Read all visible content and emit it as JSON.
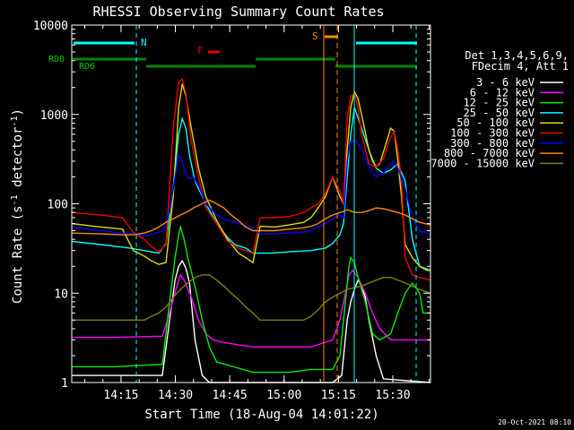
{
  "chart_data": {
    "type": "line",
    "title": "RHESSI Observing Summary Count Rates",
    "xlabel": "Start Time (18-Aug-04 14:01:22)",
    "ylabel": "Count Rate (s⁻¹ detector⁻¹)",
    "ylabel_parts": {
      "main": "Count Rate (s",
      "sup1": "-1",
      "mid": " detector",
      "sup2": "-1",
      "end": ")"
    },
    "footer": "20-Oct-2021 08:10",
    "log_y": true,
    "ylim": [
      1,
      10000
    ],
    "xlim_minutes": [
      0,
      99
    ],
    "x_ticks": [
      {
        "t": 13.6,
        "label": "14:15"
      },
      {
        "t": 28.6,
        "label": "14:30"
      },
      {
        "t": 43.6,
        "label": "14:45"
      },
      {
        "t": 58.6,
        "label": "15:00"
      },
      {
        "t": 73.6,
        "label": "15:15"
      },
      {
        "t": 88.6,
        "label": "15:30"
      }
    ],
    "y_ticks": [
      {
        "v": 1,
        "label": "1"
      },
      {
        "v": 10,
        "label": "10"
      },
      {
        "v": 100,
        "label": "100"
      },
      {
        "v": 1000,
        "label": "1000"
      },
      {
        "v": 10000,
        "label": "10000"
      }
    ],
    "legend_title": [
      "Det 1,3,4,5,6,9,",
      "FDecim 4, Att 1"
    ],
    "series": [
      {
        "name": "3 - 6 keV",
        "color": "#ffffff",
        "x": [
          0,
          25,
          27,
          28.5,
          29.5,
          30.5,
          31.5,
          32.5,
          34,
          36,
          38,
          60,
          66,
          72,
          74.5,
          76,
          77,
          78,
          79,
          80,
          81,
          82,
          84,
          86,
          99
        ],
        "values": [
          1.2,
          1.2,
          5,
          14,
          20,
          23,
          19,
          13,
          3,
          1.2,
          1,
          1,
          1,
          1,
          1.2,
          5,
          8,
          11,
          14,
          12,
          9,
          5,
          2,
          1.1,
          1
        ]
      },
      {
        "name": "6 - 12 keV",
        "color": "#ff00ff",
        "x": [
          0,
          12,
          25,
          27,
          29,
          30,
          31,
          33,
          35,
          37,
          39,
          42,
          50,
          60,
          66,
          72,
          74,
          75.5,
          76.5,
          77.5,
          79,
          81,
          83,
          85,
          88,
          92,
          99
        ],
        "values": [
          3.2,
          3.2,
          3.3,
          6,
          12,
          16,
          14,
          9,
          5,
          3.5,
          3,
          2.8,
          2.5,
          2.5,
          2.5,
          3,
          5,
          10,
          16,
          18,
          15,
          10,
          6,
          4,
          3,
          3,
          3
        ]
      },
      {
        "name": "12 - 25 keV",
        "color": "#00ee00",
        "x": [
          0,
          12,
          25,
          27,
          28.5,
          29.5,
          30,
          31,
          32,
          34,
          36,
          38,
          40,
          50,
          60,
          66,
          72,
          74,
          75.5,
          76.5,
          77,
          78,
          79,
          81,
          83,
          85,
          88,
          90,
          92,
          94,
          96,
          97,
          99
        ],
        "values": [
          1.5,
          1.5,
          1.6,
          8,
          25,
          45,
          55,
          40,
          25,
          12,
          5,
          2.5,
          1.7,
          1.3,
          1.3,
          1.4,
          1.4,
          2,
          8,
          20,
          25,
          22,
          15,
          8,
          3.5,
          3,
          3.5,
          6,
          10,
          13,
          10,
          6,
          6
        ]
      },
      {
        "name": "25 - 50 keV",
        "color": "#00ffff",
        "x": [
          0,
          8,
          16,
          20,
          24,
          26,
          28,
          29.5,
          30.5,
          31.5,
          32.5,
          34,
          37,
          40,
          43,
          45,
          48,
          49,
          50,
          55,
          60,
          66,
          70,
          72,
          74,
          75,
          76,
          77,
          78,
          80,
          82,
          84,
          86,
          88,
          90,
          92,
          94,
          96,
          99
        ],
        "values": [
          38,
          35,
          32,
          30,
          28,
          36,
          150,
          600,
          900,
          700,
          350,
          180,
          100,
          60,
          42,
          35,
          32,
          30,
          28,
          28,
          29,
          30,
          32,
          36,
          45,
          60,
          200,
          600,
          1200,
          700,
          400,
          250,
          220,
          240,
          280,
          180,
          40,
          20,
          18
        ]
      },
      {
        "name": "50 - 100 keV",
        "color": "#dddd00",
        "x": [
          0,
          8,
          14,
          17,
          20,
          22,
          24,
          26,
          28,
          29.5,
          30.5,
          31.5,
          33,
          35,
          37,
          40,
          43,
          46,
          48,
          50,
          52,
          56,
          60,
          64,
          66,
          68,
          70,
          72,
          74,
          75,
          76,
          77,
          78,
          79,
          80,
          82,
          83,
          84,
          85,
          86,
          88,
          89,
          90,
          91,
          92,
          94,
          96,
          98,
          99
        ],
        "values": [
          60,
          55,
          52,
          30,
          26,
          23,
          21,
          22,
          120,
          1200,
          2200,
          1600,
          700,
          250,
          120,
          65,
          40,
          28,
          25,
          22,
          56,
          55,
          58,
          62,
          70,
          90,
          120,
          200,
          120,
          100,
          400,
          1200,
          1800,
          1500,
          1000,
          400,
          300,
          260,
          280,
          380,
          700,
          650,
          300,
          120,
          35,
          25,
          20,
          18,
          18
        ]
      },
      {
        "name": "100 - 300 keV",
        "color": "#ee0000",
        "x": [
          0,
          8,
          14,
          17,
          20,
          22,
          24,
          26,
          28,
          29.5,
          30.5,
          31.5,
          33,
          35,
          37,
          40,
          43,
          46,
          48,
          50,
          52,
          56,
          60,
          64,
          66,
          68,
          70,
          72,
          74,
          75,
          76,
          77,
          78,
          79,
          80,
          82,
          84,
          86,
          88,
          89,
          90,
          91,
          92,
          94,
          96,
          99
        ],
        "values": [
          80,
          75,
          70,
          48,
          40,
          33,
          29,
          35,
          700,
          2300,
          2500,
          1700,
          500,
          200,
          90,
          60,
          38,
          32,
          30,
          28,
          70,
          70,
          72,
          80,
          90,
          100,
          130,
          200,
          140,
          100,
          900,
          1600,
          1700,
          1200,
          600,
          280,
          260,
          320,
          560,
          640,
          400,
          180,
          25,
          16,
          15,
          14
        ]
      },
      {
        "name": "300 - 800 keV",
        "color": "#0000ff",
        "x": [
          0,
          8,
          14,
          17,
          20,
          22,
          25,
          27,
          28.5,
          29.5,
          30.5,
          31.5,
          32.5,
          33.5,
          35,
          37,
          40,
          43,
          46,
          49,
          52,
          56,
          60,
          64,
          66,
          68,
          70,
          72,
          74,
          75,
          76,
          77,
          78,
          80,
          82,
          84,
          86,
          88,
          89,
          90,
          92,
          94,
          96,
          99
        ],
        "values": [
          55,
          50,
          47,
          46,
          44,
          45,
          50,
          80,
          200,
          350,
          300,
          210,
          190,
          200,
          160,
          100,
          75,
          65,
          60,
          56,
          46,
          46,
          47,
          48,
          50,
          55,
          60,
          68,
          75,
          70,
          300,
          500,
          520,
          420,
          260,
          200,
          220,
          280,
          300,
          250,
          150,
          70,
          50,
          45
        ]
      },
      {
        "name": "800 - 7000 keV",
        "color": "#ff8800",
        "x": [
          0,
          8,
          14,
          17,
          20,
          22,
          24,
          26,
          28,
          30,
          32,
          34,
          36,
          38,
          40,
          42,
          44,
          46,
          48,
          50,
          52,
          56,
          60,
          64,
          66,
          68,
          70,
          72,
          74,
          75,
          76,
          78,
          80,
          82,
          84,
          86,
          88,
          90,
          92,
          94,
          96,
          99
        ],
        "values": [
          47,
          46,
          45,
          45,
          47,
          50,
          55,
          62,
          68,
          75,
          82,
          92,
          100,
          110,
          100,
          90,
          75,
          65,
          55,
          50,
          50,
          50,
          52,
          54,
          56,
          60,
          68,
          75,
          80,
          82,
          86,
          80,
          80,
          84,
          90,
          88,
          84,
          80,
          75,
          68,
          62,
          58
        ]
      },
      {
        "name": "7000 - 15000 keV",
        "color": "#808000",
        "x": [
          0,
          6,
          12,
          16,
          18,
          20,
          22,
          24,
          26,
          28,
          30,
          32,
          34,
          36,
          38,
          40,
          42,
          44,
          46,
          48,
          50,
          52,
          56,
          60,
          64,
          66,
          68,
          70,
          72,
          74,
          76,
          78,
          80,
          82,
          84,
          86,
          88,
          90,
          92,
          94,
          96,
          99
        ],
        "values": [
          5,
          5,
          5,
          5,
          5,
          5,
          5.5,
          6,
          7,
          9,
          11,
          13,
          15,
          16,
          16,
          14,
          12,
          10,
          8.5,
          7,
          6,
          5,
          5,
          5,
          5,
          5.5,
          6.5,
          8,
          9,
          10,
          11,
          11.5,
          12,
          13,
          14,
          15,
          15,
          14,
          13,
          12,
          11,
          10
        ]
      }
    ],
    "flags": {
      "night_label": "N",
      "saa_label": "S",
      "flare_label": "F",
      "attenuator_labels": [
        "RD0",
        "RD6"
      ]
    }
  }
}
